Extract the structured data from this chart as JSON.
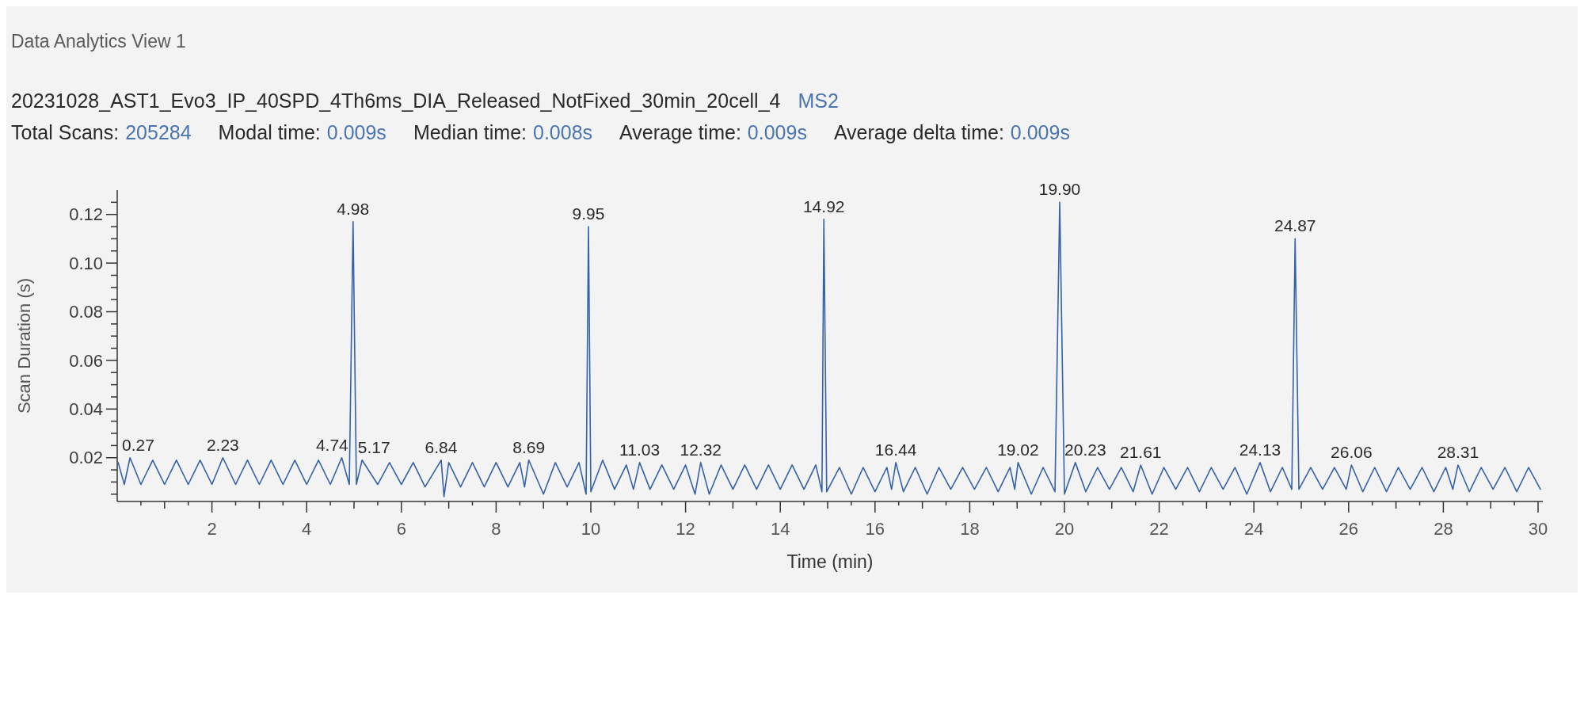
{
  "chart_data": {
    "type": "line",
    "title": "Data Analytics View 1",
    "subtitle": "20231028_AST1_Evo3_IP_40SPD_4Th6ms_DIA_Released_NotFixed_30min_20cell_4",
    "annotations": [
      "MS2",
      "Total Scans:",
      "205284",
      "Modal time:",
      "0.009s",
      "Median time:",
      "0.008s",
      "Average time:",
      "0.009s",
      "Average delta time:",
      "0.009s",
      {
        "text": "0.27",
        "x": 0.27,
        "y": 0.02
      },
      {
        "text": "2.23",
        "x": 2.23,
        "y": 0.02
      },
      {
        "text": "4.74",
        "x": 4.74,
        "y": 0.02
      },
      {
        "text": "4.98",
        "x": 4.98,
        "y": 0.117
      },
      {
        "text": "5.17",
        "x": 5.17,
        "y": 0.019
      },
      {
        "text": "6.84",
        "x": 6.84,
        "y": 0.019
      },
      {
        "text": "8.69",
        "x": 8.69,
        "y": 0.019
      },
      {
        "text": "9.95",
        "x": 9.95,
        "y": 0.115
      },
      {
        "text": "11.03",
        "x": 11.03,
        "y": 0.018
      },
      {
        "text": "12.32",
        "x": 12.32,
        "y": 0.018
      },
      {
        "text": "14.92",
        "x": 14.92,
        "y": 0.118
      },
      {
        "text": "16.44",
        "x": 16.44,
        "y": 0.018
      },
      {
        "text": "19.02",
        "x": 19.02,
        "y": 0.018
      },
      {
        "text": "19.90",
        "x": 19.9,
        "y": 0.125
      },
      {
        "text": "20.23",
        "x": 20.23,
        "y": 0.018
      },
      {
        "text": "21.61",
        "x": 21.61,
        "y": 0.017
      },
      {
        "text": "24.13",
        "x": 24.13,
        "y": 0.018
      },
      {
        "text": "24.87",
        "x": 24.87,
        "y": 0.11
      },
      {
        "text": "26.06",
        "x": 26.06,
        "y": 0.017
      },
      {
        "text": "28.31",
        "x": 28.31,
        "y": 0.017
      }
    ],
    "xlabel": "Time (min)",
    "ylabel": "Scan Duration (s)",
    "series": [
      {
        "color": "#3561a6",
        "x": [
          0.02,
          0.15,
          0.27,
          0.5,
          0.75,
          1,
          1.25,
          1.5,
          1.75,
          2,
          2.23,
          2.5,
          2.75,
          3,
          3.25,
          3.5,
          3.75,
          4,
          4.25,
          4.5,
          4.74,
          4.9,
          4.98,
          5.05,
          5.17,
          5.5,
          5.75,
          6,
          6.25,
          6.5,
          6.84,
          6.9,
          7,
          7.25,
          7.5,
          7.75,
          8,
          8.25,
          8.5,
          8.6,
          8.69,
          9,
          9.25,
          9.5,
          9.75,
          9.9,
          9.95,
          10,
          10.25,
          10.5,
          10.75,
          10.9,
          11.03,
          11.25,
          11.5,
          11.75,
          12,
          12.2,
          12.32,
          12.5,
          12.75,
          13,
          13.25,
          13.5,
          13.75,
          14,
          14.25,
          14.5,
          14.75,
          14.88,
          14.92,
          14.98,
          15.25,
          15.5,
          15.75,
          16,
          16.25,
          16.35,
          16.44,
          16.6,
          16.85,
          17.1,
          17.35,
          17.6,
          17.85,
          18.1,
          18.35,
          18.6,
          18.85,
          18.95,
          19.02,
          19.3,
          19.55,
          19.8,
          19.9,
          20,
          20.23,
          20.45,
          20.7,
          20.95,
          21.2,
          21.45,
          21.61,
          21.85,
          22.1,
          22.35,
          22.6,
          22.85,
          23.1,
          23.35,
          23.6,
          23.85,
          24.13,
          24.35,
          24.6,
          24.8,
          24.87,
          24.95,
          25.2,
          25.45,
          25.7,
          25.95,
          26.06,
          26.3,
          26.55,
          26.8,
          27.05,
          27.3,
          27.55,
          27.8,
          28.05,
          28.2,
          28.31,
          28.55,
          28.8,
          29.05,
          29.3,
          29.55,
          29.8,
          30.05
        ],
        "values": [
          0.018,
          0.009,
          0.02,
          0.009,
          0.019,
          0.009,
          0.019,
          0.009,
          0.019,
          0.009,
          0.02,
          0.009,
          0.019,
          0.009,
          0.019,
          0.009,
          0.019,
          0.009,
          0.019,
          0.009,
          0.02,
          0.009,
          0.117,
          0.009,
          0.019,
          0.009,
          0.018,
          0.009,
          0.018,
          0.008,
          0.019,
          0.004,
          0.018,
          0.008,
          0.018,
          0.008,
          0.018,
          0.008,
          0.018,
          0.008,
          0.019,
          0.005,
          0.018,
          0.008,
          0.018,
          0.005,
          0.115,
          0.006,
          0.019,
          0.007,
          0.017,
          0.007,
          0.018,
          0.007,
          0.017,
          0.007,
          0.017,
          0.005,
          0.018,
          0.005,
          0.017,
          0.007,
          0.017,
          0.007,
          0.017,
          0.007,
          0.017,
          0.007,
          0.017,
          0.006,
          0.118,
          0.006,
          0.016,
          0.005,
          0.016,
          0.006,
          0.016,
          0.007,
          0.018,
          0.006,
          0.016,
          0.005,
          0.016,
          0.007,
          0.016,
          0.007,
          0.016,
          0.006,
          0.016,
          0.007,
          0.018,
          0.005,
          0.016,
          0.006,
          0.125,
          0.005,
          0.018,
          0.006,
          0.016,
          0.007,
          0.016,
          0.006,
          0.017,
          0.005,
          0.016,
          0.007,
          0.016,
          0.006,
          0.016,
          0.007,
          0.016,
          0.005,
          0.018,
          0.006,
          0.016,
          0.007,
          0.11,
          0.007,
          0.016,
          0.007,
          0.016,
          0.007,
          0.017,
          0.006,
          0.016,
          0.006,
          0.016,
          0.007,
          0.016,
          0.006,
          0.016,
          0.007,
          0.017,
          0.006,
          0.016,
          0.007,
          0.016,
          0.006,
          0.016,
          0.007
        ]
      }
    ],
    "xlim": [
      0,
      30.1
    ],
    "ylim": [
      0.002,
      0.13
    ],
    "xticks": [
      {
        "value": 0.5,
        "label": null
      },
      {
        "value": 1,
        "label": null
      },
      {
        "value": 1.5,
        "label": null
      },
      2,
      {
        "value": 2.5,
        "label": null
      },
      {
        "value": 3,
        "label": null
      },
      {
        "value": 3.5,
        "label": null
      },
      4,
      {
        "value": 4.5,
        "label": null
      },
      {
        "value": 5,
        "label": null
      },
      {
        "value": 5.5,
        "label": null
      },
      6,
      {
        "value": 6.5,
        "label": null
      },
      {
        "value": 7,
        "label": null
      },
      {
        "value": 7.5,
        "label": null
      },
      8,
      {
        "value": 8.5,
        "label": null
      },
      {
        "value": 9,
        "label": null
      },
      {
        "value": 9.5,
        "label": null
      },
      10,
      {
        "value": 10.5,
        "label": null
      },
      {
        "value": 11,
        "label": null
      },
      {
        "value": 11.5,
        "label": null
      },
      12,
      {
        "value": 12.5,
        "label": null
      },
      {
        "value": 13,
        "label": null
      },
      {
        "value": 13.5,
        "label": null
      },
      14,
      {
        "value": 14.5,
        "label": null
      },
      {
        "value": 15,
        "label": null
      },
      {
        "value": 15.5,
        "label": null
      },
      16,
      {
        "value": 16.5,
        "label": null
      },
      {
        "value": 17,
        "label": null
      },
      {
        "value": 17.5,
        "label": null
      },
      18,
      {
        "value": 18.5,
        "label": null
      },
      {
        "value": 19,
        "label": null
      },
      {
        "value": 19.5,
        "label": null
      },
      20,
      {
        "value": 20.5,
        "label": null
      },
      {
        "value": 21,
        "label": null
      },
      {
        "value": 21.5,
        "label": null
      },
      22,
      {
        "value": 22.5,
        "label": null
      },
      {
        "value": 23,
        "label": null
      },
      {
        "value": 23.5,
        "label": null
      },
      24,
      {
        "value": 24.5,
        "label": null
      },
      {
        "value": 25,
        "label": null
      },
      {
        "value": 25.5,
        "label": null
      },
      26,
      {
        "value": 26.5,
        "label": null
      },
      {
        "value": 27,
        "label": null
      },
      {
        "value": 27.5,
        "label": null
      },
      28,
      {
        "value": 28.5,
        "label": null
      },
      {
        "value": 29,
        "label": null
      },
      {
        "value": 29.5,
        "label": null
      },
      30
    ],
    "yticks": [
      {
        "value": 0.005,
        "label": null
      },
      {
        "value": 0.01,
        "label": null
      },
      {
        "value": 0.015,
        "label": null
      },
      0.02,
      {
        "value": 0.025,
        "label": null
      },
      {
        "value": 0.03,
        "label": null
      },
      {
        "value": 0.035,
        "label": null
      },
      0.04,
      {
        "value": 0.045,
        "label": null
      },
      {
        "value": 0.05,
        "label": null
      },
      {
        "value": 0.055,
        "label": null
      },
      0.06,
      {
        "value": 0.065,
        "label": null
      },
      {
        "value": 0.07,
        "label": null
      },
      {
        "value": 0.075,
        "label": null
      },
      0.08,
      {
        "value": 0.085,
        "label": null
      },
      {
        "value": 0.09,
        "label": null
      },
      {
        "value": 0.095,
        "label": null
      },
      {
        "value": 0.1,
        "label": "0.10"
      },
      {
        "value": 0.105,
        "label": null
      },
      {
        "value": 0.11,
        "label": null
      },
      {
        "value": 0.115,
        "label": null
      },
      0.12,
      {
        "value": 0.125,
        "label": null
      }
    ]
  }
}
